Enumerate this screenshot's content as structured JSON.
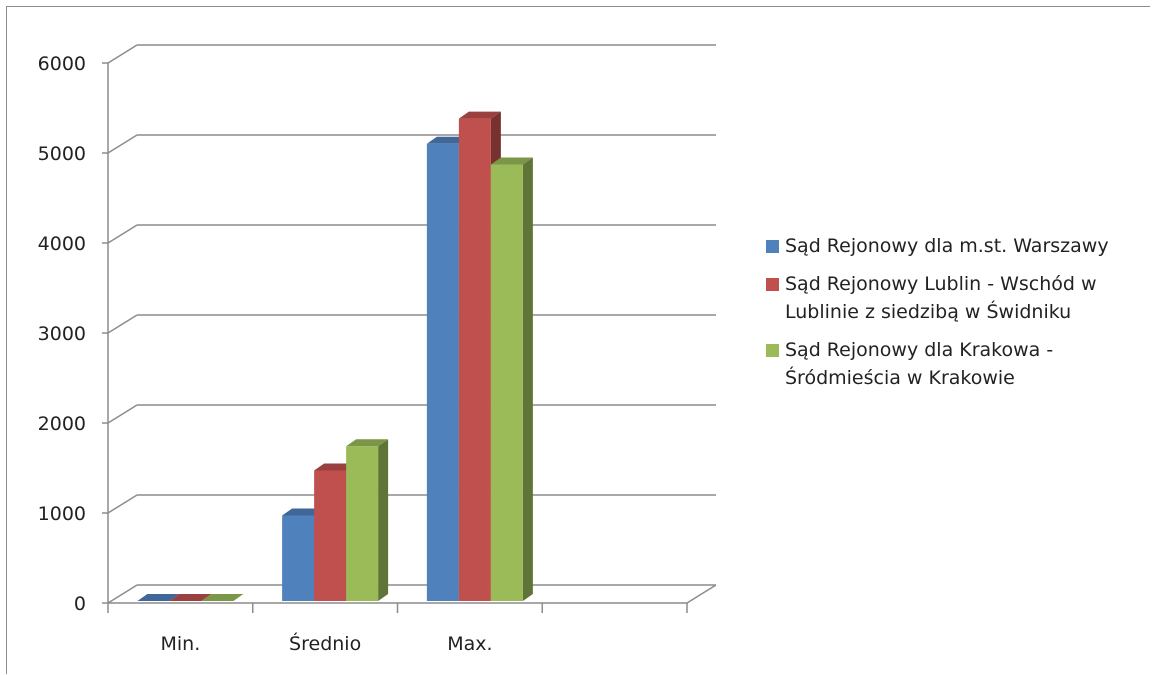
{
  "chart_data": {
    "type": "bar",
    "categories": [
      "Min.",
      "Średnio",
      "Max.",
      ""
    ],
    "ylim": [
      0,
      6000
    ],
    "yticks": [
      0,
      1000,
      2000,
      3000,
      4000,
      5000,
      6000
    ],
    "legend_position": "right",
    "grid": true,
    "series": [
      {
        "name": "Sąd Rejonowy dla m.st. Warszawy",
        "color": "#4f81bd",
        "values": [
          0,
          950,
          5080,
          null
        ]
      },
      {
        "name": "Sąd Rejonowy Lublin - Wschód w Lublinie z siedzibą w Świdniku",
        "color": "#c0504d",
        "values": [
          0,
          1450,
          5360,
          null
        ]
      },
      {
        "name": "Sąd Rejonowy dla Krakowa - Śródmieścia w Krakowie",
        "color": "#9bbb59",
        "values": [
          0,
          1720,
          4850,
          null
        ]
      }
    ]
  }
}
